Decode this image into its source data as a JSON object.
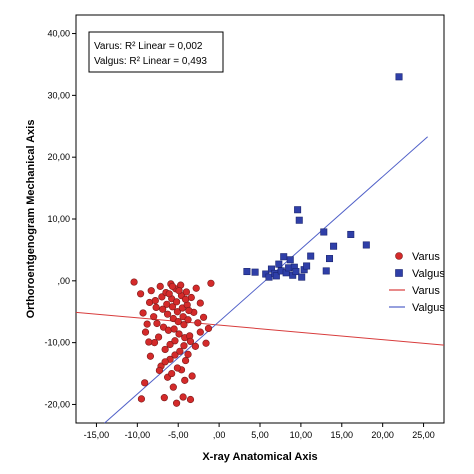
{
  "chart_data": {
    "type": "scatter",
    "xlabel": "X-ray Anatomical Axis",
    "ylabel": "Orthoroentgenogram Mechanical Axis",
    "xlim": [
      -17.5,
      27.5
    ],
    "ylim": [
      -23,
      43
    ],
    "x_ticks": [
      -15,
      -10,
      -5,
      0,
      5,
      10,
      15,
      20,
      25
    ],
    "y_ticks": [
      -20,
      -10,
      0,
      10,
      20,
      30,
      40
    ],
    "x_tick_labels": [
      "-15,00",
      "-10,00",
      "-5,00",
      ",00",
      "5,00",
      "10,00",
      "15,00",
      "20,00",
      "25,00"
    ],
    "y_tick_labels": [
      "-20,00",
      "-10,00",
      ",00",
      "10,00",
      "20,00",
      "30,00",
      "40,00"
    ],
    "annotations": [
      "Varus: R² Linear = 0,002",
      "Valgus: R² Linear = 0,493"
    ],
    "series": [
      {
        "name": "Varus",
        "marker": "circle",
        "color": "#d42a2a",
        "points": [
          [
            -10.4,
            -0.2
          ],
          [
            -9.6,
            -2.1
          ],
          [
            -9.3,
            -5.2
          ],
          [
            -9.0,
            -8.3
          ],
          [
            -8.5,
            -3.5
          ],
          [
            -8.3,
            -1.6
          ],
          [
            -8.0,
            -5.8
          ],
          [
            -7.8,
            -3.2
          ],
          [
            -7.6,
            -6.9
          ],
          [
            -7.4,
            -9.1
          ],
          [
            -7.2,
            -0.9
          ],
          [
            -7.0,
            -2.6
          ],
          [
            -6.9,
            -4.6
          ],
          [
            -6.8,
            -7.5
          ],
          [
            -6.6,
            -11.1
          ],
          [
            -6.5,
            -1.9
          ],
          [
            -6.4,
            -3.8
          ],
          [
            -6.3,
            -5.4
          ],
          [
            -6.2,
            -8.0
          ],
          [
            -6.0,
            -10.3
          ],
          [
            -6.0,
            -12.7
          ],
          [
            -5.9,
            -0.5
          ],
          [
            -5.8,
            -2.9
          ],
          [
            -5.7,
            -4.2
          ],
          [
            -5.6,
            -6.1
          ],
          [
            -5.5,
            -7.8
          ],
          [
            -5.4,
            -9.7
          ],
          [
            -5.4,
            -12.0
          ],
          [
            -5.3,
            -1.3
          ],
          [
            -5.2,
            -3.4
          ],
          [
            -5.1,
            -5.0
          ],
          [
            -5.0,
            -6.6
          ],
          [
            -4.9,
            -8.6
          ],
          [
            -4.8,
            -11.4
          ],
          [
            -4.7,
            -0.7
          ],
          [
            -4.6,
            -2.4
          ],
          [
            -4.5,
            -4.4
          ],
          [
            -4.4,
            -5.8
          ],
          [
            -4.3,
            -7.1
          ],
          [
            -4.2,
            -9.2
          ],
          [
            -4.1,
            -12.9
          ],
          [
            -4.0,
            -1.8
          ],
          [
            -3.9,
            -3.9
          ],
          [
            -3.8,
            -6.3
          ],
          [
            -3.6,
            -8.9
          ],
          [
            -3.4,
            -2.7
          ],
          [
            -3.1,
            -5.1
          ],
          [
            -2.8,
            -1.2
          ],
          [
            -2.3,
            -3.6
          ],
          [
            -1.9,
            -5.9
          ],
          [
            -1.3,
            -7.7
          ],
          [
            -1.0,
            -0.4
          ],
          [
            -7.1,
            -13.8
          ],
          [
            -6.3,
            -15.6
          ],
          [
            -5.6,
            -17.2
          ],
          [
            -4.6,
            -14.4
          ],
          [
            -4.2,
            -16.1
          ],
          [
            -5.1,
            -14.1
          ],
          [
            -6.7,
            -18.9
          ],
          [
            -5.2,
            -19.8
          ],
          [
            -3.5,
            -19.2
          ],
          [
            -3.3,
            -15.4
          ],
          [
            -4.3,
            -10.5
          ],
          [
            -5.8,
            -15.0
          ],
          [
            -7.3,
            -14.5
          ],
          [
            -9.5,
            -19.1
          ],
          [
            -9.1,
            -16.5
          ],
          [
            -8.4,
            -12.2
          ],
          [
            -7.9,
            -10.0
          ],
          [
            -6.6,
            -13.1
          ],
          [
            -4.4,
            -18.8
          ],
          [
            -3.8,
            -11.9
          ],
          [
            -3.5,
            -9.8
          ],
          [
            -2.9,
            -10.6
          ],
          [
            -2.3,
            -8.3
          ],
          [
            -1.6,
            -10.1
          ],
          [
            -8.8,
            -7.0
          ],
          [
            -7.7,
            -4.3
          ],
          [
            -6.1,
            -2.1
          ],
          [
            -5.7,
            -0.9
          ],
          [
            -4.9,
            -1.6
          ],
          [
            -4.1,
            -3.0
          ],
          [
            -3.7,
            -4.8
          ],
          [
            -2.6,
            -6.8
          ],
          [
            -8.6,
            -9.9
          ]
        ]
      },
      {
        "name": "Valgus",
        "marker": "square",
        "color": "#2f3fa8",
        "points": [
          [
            3.4,
            1.5
          ],
          [
            4.4,
            1.4
          ],
          [
            5.7,
            1.1
          ],
          [
            6.1,
            0.6
          ],
          [
            6.4,
            1.9
          ],
          [
            6.8,
            1.2
          ],
          [
            7.0,
            0.8
          ],
          [
            7.3,
            2.7
          ],
          [
            7.6,
            1.6
          ],
          [
            7.9,
            3.9
          ],
          [
            8.2,
            1.3
          ],
          [
            8.5,
            2.1
          ],
          [
            8.7,
            3.4
          ],
          [
            9.0,
            0.9
          ],
          [
            9.2,
            2.2
          ],
          [
            9.4,
            1.5
          ],
          [
            9.6,
            11.5
          ],
          [
            9.8,
            9.8
          ],
          [
            10.1,
            0.6
          ],
          [
            10.4,
            1.8
          ],
          [
            10.7,
            2.4
          ],
          [
            11.2,
            4.0
          ],
          [
            12.8,
            7.9
          ],
          [
            13.1,
            1.6
          ],
          [
            13.5,
            3.6
          ],
          [
            14.0,
            5.6
          ],
          [
            16.1,
            7.5
          ],
          [
            18.0,
            5.8
          ],
          [
            22.0,
            33.0
          ]
        ]
      }
    ],
    "fit_lines": [
      {
        "name": "Varus",
        "color": "#d83c3c",
        "from": [
          -17.5,
          -5.1
        ],
        "to": [
          27.5,
          -10.4
        ]
      },
      {
        "name": "Valgus",
        "color": "#5060c8",
        "from": [
          -14.0,
          -23.0
        ],
        "to": [
          25.5,
          23.3
        ]
      }
    ],
    "legend": {
      "placement": "right",
      "items": [
        {
          "label": "Varus",
          "kind": "circle",
          "color": "#d42a2a"
        },
        {
          "label": "Valgus",
          "kind": "square",
          "color": "#2f3fa8"
        },
        {
          "label": "Varus",
          "kind": "line",
          "color": "#d83c3c"
        },
        {
          "label": "Valgus",
          "kind": "line",
          "color": "#5060c8"
        }
      ]
    },
    "grid": false
  }
}
